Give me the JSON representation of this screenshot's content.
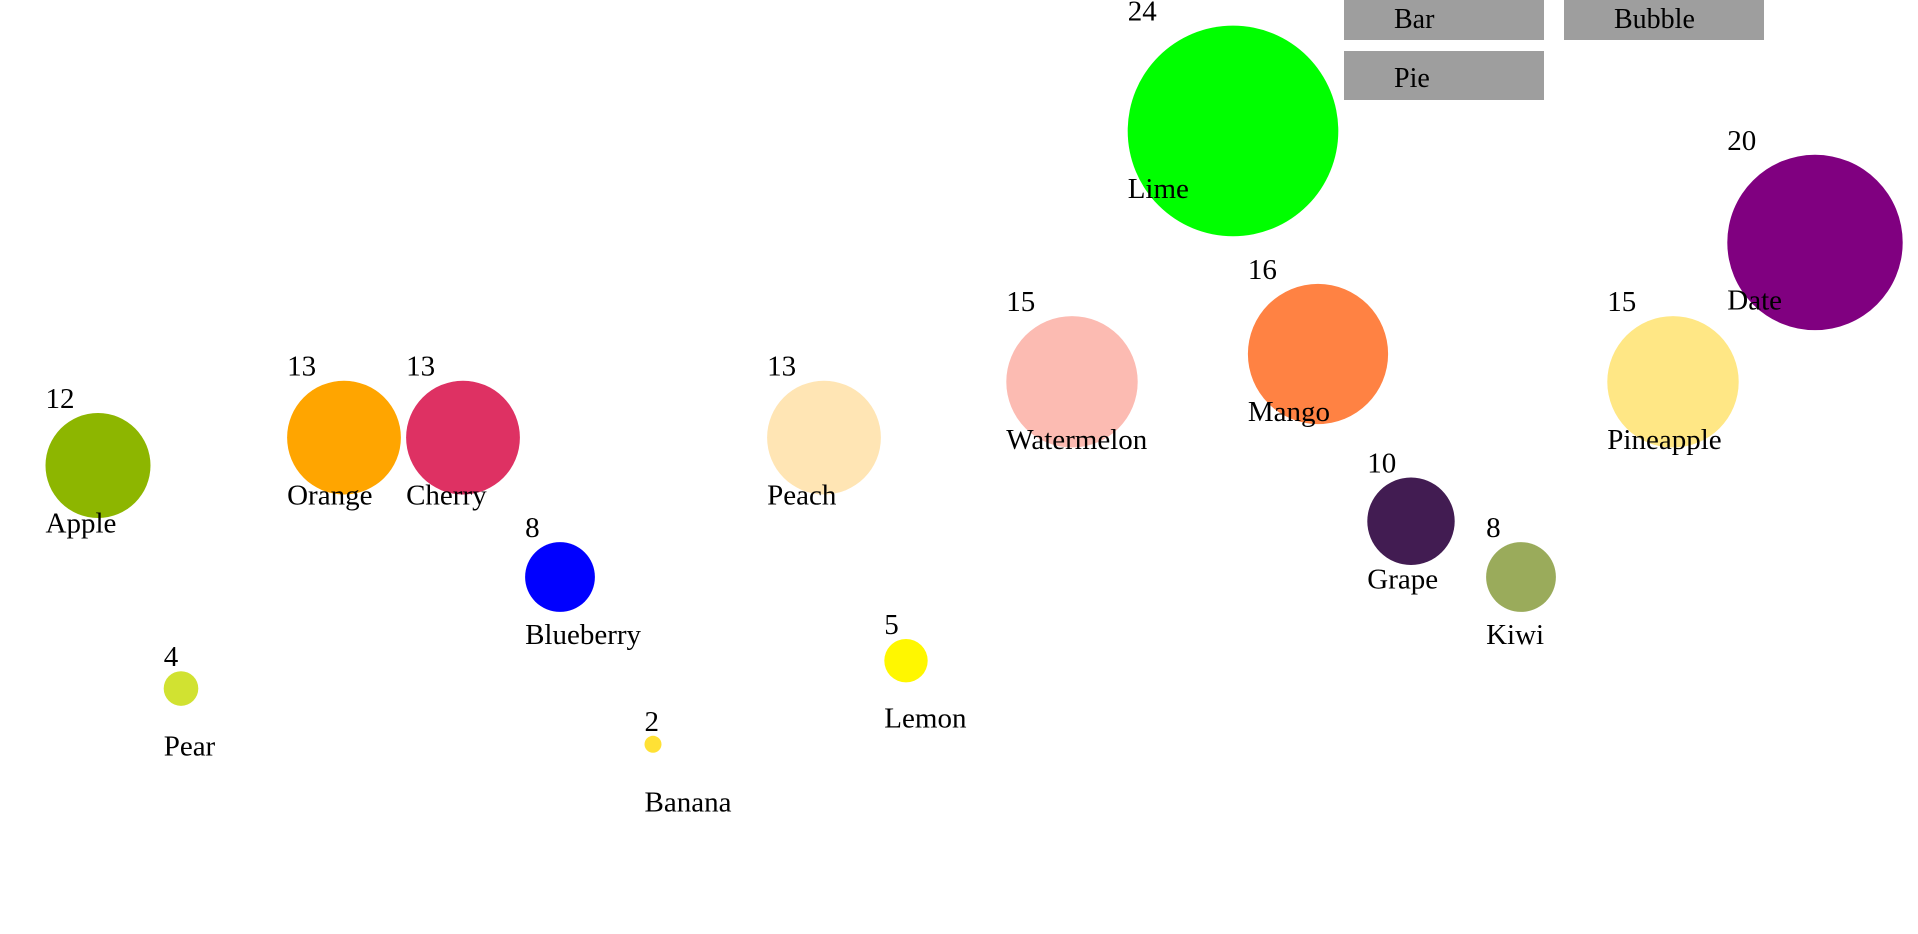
{
  "buttons": {
    "bar_label": "Bar",
    "bubble_label": "Bubble",
    "pie_label": "Pie"
  },
  "chart_data": {
    "type": "bubble",
    "title": "",
    "grid": false,
    "legend": "none",
    "series": [
      {
        "label": "Apple",
        "value": 12,
        "color": "#8db600"
      },
      {
        "label": "Pear",
        "value": 4,
        "color": "#d1e231"
      },
      {
        "label": "Orange",
        "value": 13,
        "color": "#ffa500"
      },
      {
        "label": "Cherry",
        "value": 13,
        "color": "#de3163"
      },
      {
        "label": "Blueberry",
        "value": 8,
        "color": "#0000ff"
      },
      {
        "label": "Banana",
        "value": 2,
        "color": "#ffe135"
      },
      {
        "label": "Peach",
        "value": 13,
        "color": "#ffe5b4"
      },
      {
        "label": "Lemon",
        "value": 5,
        "color": "#fff700"
      },
      {
        "label": "Watermelon",
        "value": 15,
        "color": "#fcbbb2"
      },
      {
        "label": "Lime",
        "value": 24,
        "color": "#00ff00"
      },
      {
        "label": "Mango",
        "value": 16,
        "color": "#ff8243"
      },
      {
        "label": "Grape",
        "value": 10,
        "color": "#421c52"
      },
      {
        "label": "Kiwi",
        "value": 8,
        "color": "#9aab5b"
      },
      {
        "label": "Pineapple",
        "value": 15,
        "color": "#ffe785"
      },
      {
        "label": "Date",
        "value": 20,
        "color": "#800080"
      }
    ]
  }
}
